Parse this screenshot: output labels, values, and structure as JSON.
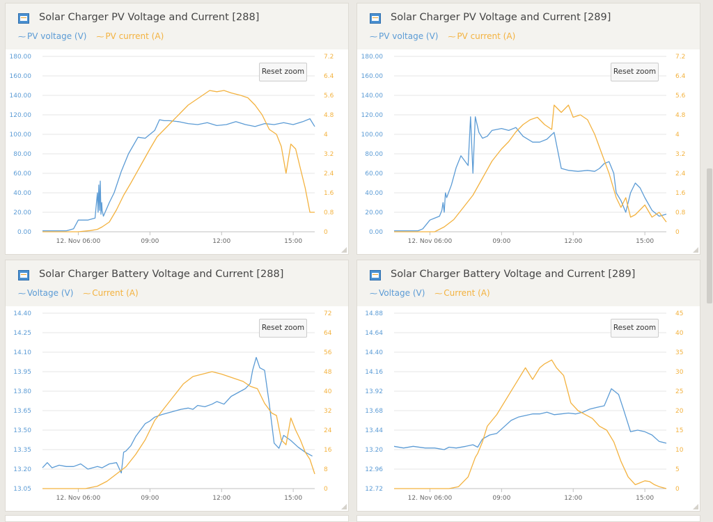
{
  "colors": {
    "voltage": "#5b9bd5",
    "current": "#f3b23f",
    "axis_text": "#5b9bd5",
    "axis_text_right": "#f3b23f",
    "grid": "#e6e6e6"
  },
  "reset_zoom_label": "Reset zoom",
  "legend_icon": "line-marker-icon",
  "panels": [
    {
      "title": "Solar Charger PV Voltage and Current [288]",
      "legend": [
        {
          "label": "PV voltage (V)"
        },
        {
          "label": "PV current (A)"
        }
      ],
      "yleft_ticks": [
        "180.00",
        "160.00",
        "140.00",
        "120.00",
        "100.00",
        "80.00",
        "60.00",
        "40.00",
        "20.00",
        "0.00"
      ],
      "yright_ticks": [
        "7.2",
        "6.4",
        "5.6",
        "4.8",
        "4",
        "3.2",
        "2.4",
        "1.6",
        "0.8",
        "0"
      ],
      "x_ticks": [
        "12. Nov 06:00",
        "09:00",
        "12:00",
        "15:00"
      ]
    },
    {
      "title": "Solar Charger PV Voltage and Current [289]",
      "legend": [
        {
          "label": "PV voltage (V)"
        },
        {
          "label": "PV current (A)"
        }
      ],
      "yleft_ticks": [
        "180.00",
        "160.00",
        "140.00",
        "120.00",
        "100.00",
        "80.00",
        "60.00",
        "40.00",
        "20.00",
        "0.00"
      ],
      "yright_ticks": [
        "7.2",
        "6.4",
        "5.6",
        "4.8",
        "4",
        "3.2",
        "2.4",
        "1.6",
        "0.8",
        "0"
      ],
      "x_ticks": [
        "12. Nov 06:00",
        "09:00",
        "12:00",
        "15:00"
      ]
    },
    {
      "title": "Solar Charger Battery Voltage and Current [288]",
      "legend": [
        {
          "label": "Voltage (V)"
        },
        {
          "label": "Current (A)"
        }
      ],
      "yleft_ticks": [
        "14.40",
        "14.25",
        "14.10",
        "13.95",
        "13.80",
        "13.65",
        "13.50",
        "13.35",
        "13.20",
        "13.05"
      ],
      "yright_ticks": [
        "72",
        "64",
        "56",
        "48",
        "40",
        "32",
        "24",
        "16",
        "8",
        "0"
      ],
      "x_ticks": [
        "12. Nov 06:00",
        "09:00",
        "12:00",
        "15:00"
      ]
    },
    {
      "title": "Solar Charger Battery Voltage and Current [289]",
      "legend": [
        {
          "label": "Voltage (V)"
        },
        {
          "label": "Current (A)"
        }
      ],
      "yleft_ticks": [
        "14.88",
        "14.64",
        "14.40",
        "14.16",
        "13.92",
        "13.68",
        "13.44",
        "13.20",
        "12.96",
        "12.72"
      ],
      "yright_ticks": [
        "45",
        "40",
        "35",
        "30",
        "25",
        "20",
        "15",
        "10",
        "5",
        "0"
      ],
      "x_ticks": [
        "12. Nov 06:00",
        "09:00",
        "12:00",
        "15:00"
      ]
    }
  ],
  "chart_data": [
    {
      "type": "line",
      "title": "Solar Charger PV Voltage and Current [288]",
      "xlabel": "",
      "ylabel": "",
      "x_unit": "hours",
      "xlim": [
        4.5,
        15.9
      ],
      "ylim": [
        0,
        180
      ],
      "y2lim": [
        0,
        7.2
      ],
      "series": [
        {
          "name": "PV voltage (V)",
          "axis": "left",
          "x": [
            4.5,
            5.5,
            5.8,
            6.0,
            6.4,
            6.7,
            6.8,
            6.83,
            6.86,
            6.89,
            6.92,
            6.95,
            6.98,
            7.0,
            7.05,
            7.3,
            7.5,
            7.8,
            8.1,
            8.5,
            8.8,
            9.0,
            9.2,
            9.4,
            9.6,
            9.8,
            10.2,
            10.6,
            11.0,
            11.4,
            11.8,
            12.2,
            12.6,
            13.0,
            13.4,
            13.8,
            14.2,
            14.6,
            15.0,
            15.4,
            15.7,
            15.9
          ],
          "y": [
            1,
            1,
            3,
            12,
            12,
            14,
            40,
            20,
            48,
            22,
            52,
            18,
            30,
            22,
            16,
            30,
            40,
            62,
            80,
            97,
            96,
            100,
            104,
            115,
            114,
            114,
            113,
            111,
            110,
            112,
            109,
            110,
            113,
            110,
            108,
            111,
            110,
            112,
            110,
            113,
            116,
            108
          ]
        },
        {
          "name": "PV current (A)",
          "axis": "right",
          "x": [
            4.5,
            6.0,
            6.5,
            6.8,
            7.0,
            7.3,
            7.6,
            7.9,
            8.2,
            8.6,
            9.0,
            9.3,
            9.7,
            10.0,
            10.3,
            10.6,
            10.9,
            11.2,
            11.5,
            11.8,
            12.1,
            12.4,
            12.8,
            13.1,
            13.4,
            13.7,
            14.0,
            14.3,
            14.5,
            14.7,
            14.9,
            15.1,
            15.3,
            15.5,
            15.7,
            15.9
          ],
          "y": [
            0,
            0,
            0.05,
            0.1,
            0.2,
            0.4,
            0.9,
            1.5,
            2.0,
            2.7,
            3.4,
            3.9,
            4.3,
            4.6,
            4.9,
            5.2,
            5.4,
            5.6,
            5.8,
            5.75,
            5.8,
            5.7,
            5.6,
            5.5,
            5.2,
            4.8,
            4.2,
            4.0,
            3.5,
            2.4,
            3.6,
            3.4,
            2.6,
            1.8,
            0.8,
            0.8
          ]
        }
      ]
    },
    {
      "type": "line",
      "title": "Solar Charger PV Voltage and Current [289]",
      "xlabel": "",
      "ylabel": "",
      "x_unit": "hours",
      "xlim": [
        4.5,
        15.9
      ],
      "ylim": [
        0,
        180
      ],
      "y2lim": [
        0,
        7.2
      ],
      "series": [
        {
          "name": "PV voltage (V)",
          "axis": "left",
          "x": [
            4.5,
            5.5,
            5.7,
            6.0,
            6.2,
            6.4,
            6.5,
            6.55,
            6.6,
            6.65,
            6.7,
            6.9,
            7.1,
            7.3,
            7.6,
            7.7,
            7.8,
            7.9,
            8.05,
            8.2,
            8.4,
            8.6,
            9.0,
            9.3,
            9.6,
            9.9,
            10.3,
            10.6,
            10.9,
            11.2,
            11.5,
            11.8,
            12.2,
            12.6,
            12.9,
            13.1,
            13.3,
            13.5,
            13.7,
            13.8,
            14.0,
            14.2,
            14.4,
            14.6,
            14.8,
            15.0,
            15.3,
            15.6,
            15.9
          ],
          "y": [
            1,
            1,
            3,
            12,
            14,
            16,
            22,
            30,
            20,
            40,
            35,
            48,
            66,
            78,
            68,
            118,
            60,
            118,
            102,
            96,
            98,
            104,
            106,
            104,
            107,
            98,
            92,
            92,
            95,
            102,
            65,
            63,
            62,
            63,
            62,
            65,
            70,
            72,
            60,
            40,
            32,
            20,
            40,
            50,
            45,
            35,
            22,
            16,
            18
          ]
        },
        {
          "name": "PV current (A)",
          "axis": "right",
          "x": [
            4.5,
            6.2,
            6.6,
            7.0,
            7.4,
            7.8,
            8.2,
            8.6,
            9.0,
            9.3,
            9.6,
            9.9,
            10.2,
            10.5,
            10.8,
            11.1,
            11.2,
            11.5,
            11.8,
            12.0,
            12.3,
            12.6,
            12.9,
            13.2,
            13.5,
            13.8,
            14.0,
            14.2,
            14.4,
            14.6,
            14.8,
            15.0,
            15.3,
            15.6,
            15.9
          ],
          "y": [
            0,
            0,
            0.2,
            0.5,
            1.0,
            1.5,
            2.2,
            2.9,
            3.4,
            3.7,
            4.1,
            4.4,
            4.6,
            4.7,
            4.4,
            4.2,
            5.2,
            4.9,
            5.2,
            4.7,
            4.8,
            4.6,
            4.0,
            3.2,
            2.4,
            1.4,
            1.0,
            1.4,
            0.6,
            0.7,
            0.9,
            1.1,
            0.6,
            0.8,
            0.4
          ]
        }
      ]
    },
    {
      "type": "line",
      "title": "Solar Charger Battery Voltage and Current [288]",
      "xlabel": "",
      "ylabel": "",
      "x_unit": "hours",
      "xlim": [
        4.5,
        15.9
      ],
      "ylim": [
        13.05,
        14.4
      ],
      "y2lim": [
        0,
        72
      ],
      "series": [
        {
          "name": "Voltage (V)",
          "axis": "left",
          "x": [
            4.5,
            4.7,
            4.9,
            5.2,
            5.5,
            5.8,
            6.1,
            6.4,
            6.6,
            6.8,
            7.0,
            7.3,
            7.6,
            7.8,
            7.9,
            8.0,
            8.2,
            8.4,
            8.6,
            8.8,
            9.0,
            9.2,
            9.5,
            9.9,
            10.3,
            10.6,
            10.8,
            11.0,
            11.3,
            11.6,
            11.8,
            12.1,
            12.4,
            12.8,
            13.0,
            13.2,
            13.3,
            13.45,
            13.6,
            13.8,
            14.0,
            14.2,
            14.4,
            14.6,
            14.9,
            15.2,
            15.5,
            15.8
          ],
          "y": [
            13.21,
            13.25,
            13.21,
            13.23,
            13.22,
            13.22,
            13.24,
            13.2,
            13.21,
            13.22,
            13.21,
            13.24,
            13.25,
            13.17,
            13.33,
            13.34,
            13.38,
            13.45,
            13.5,
            13.55,
            13.57,
            13.6,
            13.62,
            13.64,
            13.66,
            13.67,
            13.66,
            13.69,
            13.68,
            13.7,
            13.72,
            13.7,
            13.76,
            13.8,
            13.82,
            13.86,
            13.96,
            14.06,
            13.98,
            13.96,
            13.7,
            13.4,
            13.36,
            13.46,
            13.42,
            13.37,
            13.33,
            13.3
          ]
        },
        {
          "name": "Current (A)",
          "axis": "right",
          "x": [
            4.5,
            6.3,
            6.8,
            7.2,
            7.6,
            8.0,
            8.4,
            8.8,
            9.2,
            9.6,
            10.0,
            10.4,
            10.8,
            11.2,
            11.6,
            12.0,
            12.3,
            12.6,
            12.9,
            13.2,
            13.5,
            13.8,
            14.1,
            14.3,
            14.5,
            14.7,
            14.9,
            15.1,
            15.3,
            15.5,
            15.7,
            15.9
          ],
          "y": [
            0,
            0,
            1,
            3,
            6,
            9,
            14,
            20,
            28,
            33,
            38,
            43,
            46,
            47,
            48,
            47,
            46,
            45,
            44,
            42,
            41,
            35,
            31,
            30,
            20,
            18,
            29,
            24,
            20,
            15,
            12,
            6
          ]
        }
      ]
    },
    {
      "type": "line",
      "title": "Solar Charger Battery Voltage and Current [289]",
      "xlabel": "",
      "ylabel": "",
      "x_unit": "hours",
      "xlim": [
        4.5,
        15.9
      ],
      "ylim": [
        12.72,
        14.88
      ],
      "y2lim": [
        0,
        45
      ],
      "series": [
        {
          "name": "Voltage (V)",
          "axis": "left",
          "x": [
            4.5,
            4.9,
            5.3,
            5.8,
            6.2,
            6.6,
            6.8,
            7.1,
            7.5,
            7.8,
            8.0,
            8.2,
            8.5,
            8.8,
            9.1,
            9.4,
            9.7,
            10.0,
            10.3,
            10.6,
            10.9,
            11.2,
            11.5,
            11.8,
            12.1,
            12.4,
            12.7,
            13.0,
            13.3,
            13.6,
            13.9,
            14.1,
            14.4,
            14.7,
            15.0,
            15.3,
            15.6,
            15.9
          ],
          "y": [
            13.24,
            13.22,
            13.24,
            13.22,
            13.22,
            13.2,
            13.23,
            13.22,
            13.24,
            13.26,
            13.23,
            13.33,
            13.38,
            13.4,
            13.48,
            13.56,
            13.6,
            13.62,
            13.64,
            13.64,
            13.66,
            13.63,
            13.64,
            13.65,
            13.64,
            13.66,
            13.7,
            13.72,
            13.74,
            13.95,
            13.88,
            13.7,
            13.42,
            13.44,
            13.42,
            13.38,
            13.3,
            13.28
          ]
        },
        {
          "name": "Current (A)",
          "axis": "right",
          "x": [
            4.5,
            6.8,
            7.2,
            7.6,
            7.9,
            8.0,
            8.2,
            8.4,
            8.8,
            9.2,
            9.6,
            10.0,
            10.3,
            10.6,
            10.8,
            11.1,
            11.3,
            11.6,
            11.9,
            12.2,
            12.5,
            12.8,
            13.1,
            13.4,
            13.7,
            14.0,
            14.3,
            14.6,
            14.8,
            15.0,
            15.2,
            15.4,
            15.6,
            15.9
          ],
          "y": [
            0,
            0,
            0.5,
            3,
            8,
            9,
            12,
            16,
            19,
            23,
            27,
            31,
            28,
            31,
            32,
            33,
            31,
            29,
            22,
            20,
            19,
            18,
            16,
            15,
            12,
            7,
            3,
            1,
            1.5,
            2,
            1.8,
            1,
            0.5,
            0
          ]
        }
      ]
    }
  ]
}
